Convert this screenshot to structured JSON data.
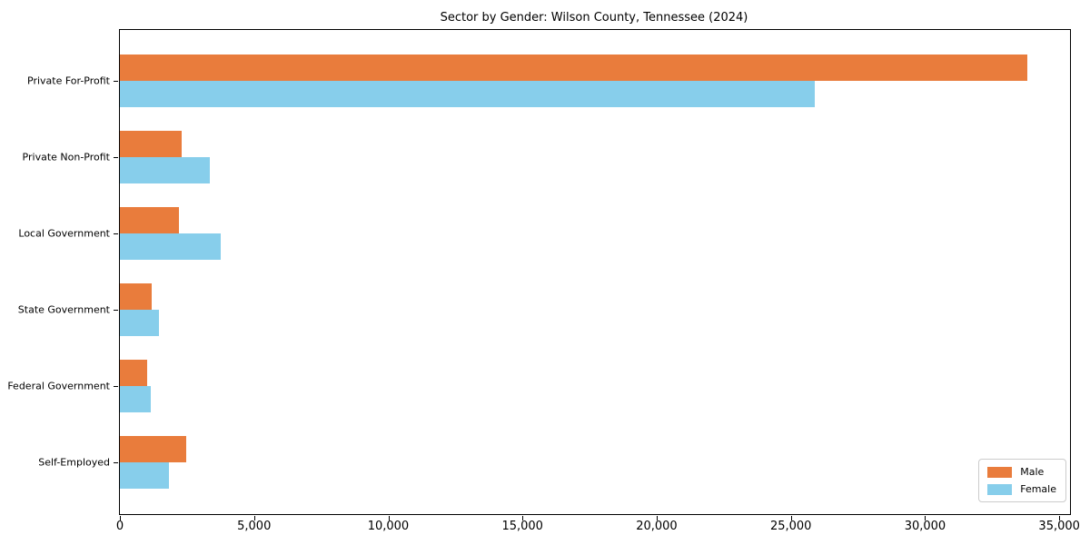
{
  "figure": {
    "background": "#ffffff",
    "axis_color": "#000000"
  },
  "chart_data": {
    "type": "bar",
    "orientation": "horizontal",
    "title": "Sector by Gender: Wilson County, Tennessee (2024)",
    "categories": [
      "Private For-Profit",
      "Private Non-Profit",
      "Local Government",
      "State Government",
      "Federal Government",
      "Self-Employed"
    ],
    "series": [
      {
        "name": "Male",
        "color": "#E97C3C",
        "values": [
          33800,
          2310,
          2200,
          1170,
          1000,
          2480
        ]
      },
      {
        "name": "Female",
        "color": "#87CEEB",
        "values": [
          25900,
          3360,
          3740,
          1460,
          1150,
          1840
        ]
      }
    ],
    "xlim": [
      0,
      35400
    ],
    "xticks": [
      0,
      5000,
      10000,
      15000,
      20000,
      25000,
      30000,
      35000
    ],
    "xtick_labels": [
      "0",
      "5,000",
      "10,000",
      "15,000",
      "20,000",
      "25,000",
      "30,000",
      "35,000"
    ],
    "xlabel": "",
    "ylabel": "",
    "grid": false,
    "legend": {
      "position": "lower right",
      "entries": [
        "Male",
        "Female"
      ]
    }
  }
}
